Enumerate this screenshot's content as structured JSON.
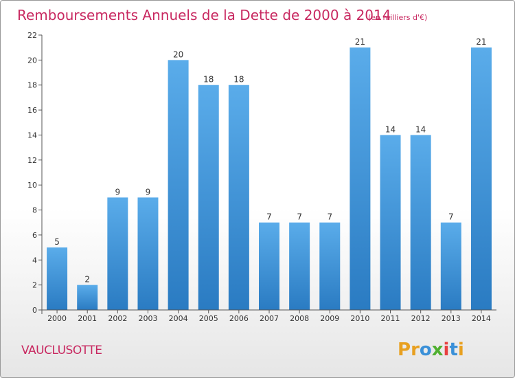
{
  "chart_data": {
    "type": "bar",
    "title": "Remboursements Annuels de la Dette de 2000 à 2014",
    "subtitle": "(en milliers d'€)",
    "categories": [
      "2000",
      "2001",
      "2002",
      "2003",
      "2004",
      "2005",
      "2006",
      "2007",
      "2008",
      "2009",
      "2010",
      "2011",
      "2012",
      "2013",
      "2014"
    ],
    "values": [
      5,
      2,
      9,
      9,
      20,
      18,
      18,
      7,
      7,
      7,
      21,
      14,
      14,
      7,
      21
    ],
    "data_labels": [
      "5",
      "2",
      "9",
      "9",
      "20",
      "18",
      "18",
      "7",
      "7",
      "7",
      "21",
      "14",
      "14",
      "7",
      "21"
    ],
    "yticks": [
      "0",
      "2",
      "4",
      "6",
      "8",
      "10",
      "12",
      "14",
      "16",
      "18",
      "20",
      "22"
    ],
    "ylim": [
      0,
      22
    ],
    "xlabel": "",
    "ylabel": "",
    "grid": false,
    "colors": {
      "bar_light": "#5aacea",
      "bar_dark": "#2a7bc2",
      "title": "#c82860"
    }
  },
  "commune": "VAUCLUSOTTE",
  "brand": {
    "letters": [
      "P",
      "r",
      "o",
      "x",
      "i",
      "t",
      "i"
    ],
    "colors": [
      "#e8a020",
      "#e8a020",
      "#3a90d8",
      "#50b030",
      "#e84040",
      "#3a90d8",
      "#e8a020"
    ]
  }
}
